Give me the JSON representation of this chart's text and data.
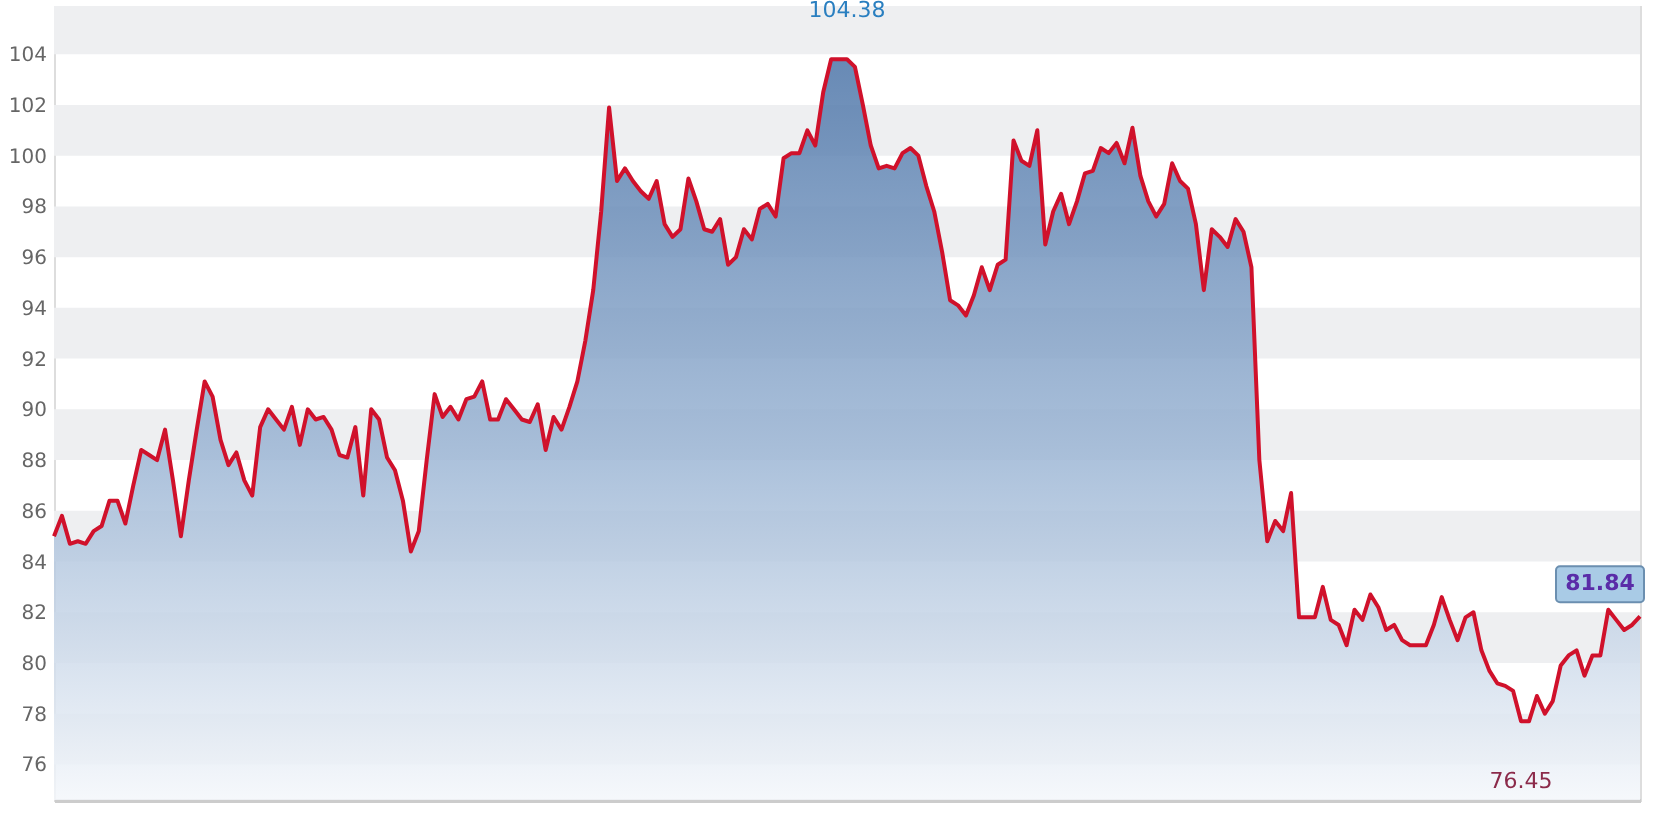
{
  "chart_data": {
    "type": "area",
    "categories": [
      null,
      null,
      null,
      null,
      null,
      null,
      null,
      null,
      null,
      null,
      null,
      null,
      null,
      null,
      null,
      null,
      null,
      null,
      null,
      null,
      null,
      null,
      null,
      null,
      null,
      null,
      null,
      null,
      null,
      null,
      null,
      null,
      null,
      null,
      null,
      null,
      null,
      null,
      null,
      null,
      null,
      null,
      null,
      null,
      null,
      null,
      null,
      null,
      null,
      null,
      null,
      null,
      null,
      null,
      null,
      null,
      null,
      null,
      null,
      null,
      null,
      null,
      null,
      null,
      null,
      null,
      null,
      null,
      null,
      null,
      null,
      null,
      null,
      null,
      null,
      null,
      null,
      null,
      null,
      null,
      null,
      null,
      null,
      null,
      null,
      null,
      null,
      null,
      null,
      null,
      null,
      null,
      null,
      null,
      null,
      null,
      null,
      null,
      null,
      null,
      null,
      null,
      null,
      null,
      null,
      null,
      null,
      null,
      null,
      null,
      null,
      null,
      null,
      null,
      null,
      null,
      null,
      null,
      null,
      null,
      null,
      null,
      null,
      null,
      null,
      null,
      null,
      null,
      null,
      null,
      null,
      null,
      null,
      null,
      null,
      null,
      null,
      null,
      null,
      null,
      null,
      null,
      null,
      null,
      null,
      null,
      null,
      null,
      null,
      null,
      null,
      null,
      null,
      null,
      null,
      null,
      null,
      null,
      null,
      null,
      null,
      null,
      null,
      null,
      null,
      null,
      null,
      null,
      null,
      null,
      null,
      null,
      null,
      null,
      null,
      null,
      null,
      null,
      null,
      null,
      null,
      null,
      null,
      null,
      null,
      null,
      null,
      null,
      null,
      null,
      null,
      null,
      null,
      null,
      null,
      null,
      null,
      null,
      null,
      null,
      null
    ],
    "series": [
      {
        "color": "#d0112b",
        "values": [
          85.0,
          85.8,
          84.7,
          84.8,
          84.7,
          85.2,
          85.4,
          86.4,
          86.4,
          85.5,
          87.0,
          88.4,
          88.2,
          88.0,
          89.2,
          87.2,
          85.0,
          87.2,
          89.2,
          91.1,
          90.5,
          88.8,
          87.8,
          88.3,
          87.2,
          86.6,
          89.3,
          90.0,
          89.6,
          89.2,
          90.1,
          88.6,
          90.0,
          89.6,
          89.7,
          89.2,
          88.2,
          88.1,
          89.3,
          86.6,
          90.0,
          89.6,
          88.1,
          87.6,
          86.4,
          84.4,
          85.2,
          88.0,
          90.6,
          89.7,
          90.1,
          89.6,
          90.4,
          90.5,
          91.1,
          89.6,
          89.6,
          90.4,
          90.0,
          89.6,
          89.5,
          90.2,
          88.4,
          89.7,
          89.2,
          90.1,
          91.1,
          92.7,
          94.7,
          97.8,
          101.9,
          99.0,
          99.5,
          99.0,
          98.6,
          98.3,
          99.0,
          97.3,
          96.8,
          97.1,
          99.1,
          98.2,
          97.1,
          97.0,
          97.5,
          95.7,
          96.0,
          97.1,
          96.7,
          97.9,
          98.1,
          97.6,
          99.9,
          100.1,
          100.1,
          101.0,
          100.4,
          102.5,
          103.8,
          103.8,
          103.8,
          103.5,
          102.0,
          100.4,
          99.5,
          99.6,
          99.5,
          100.1,
          100.3,
          100.0,
          98.8,
          97.8,
          96.2,
          94.3,
          94.1,
          93.7,
          94.5,
          95.6,
          94.7,
          95.7,
          95.9,
          100.6,
          99.8,
          99.6,
          101.0,
          96.5,
          97.8,
          98.5,
          97.3,
          98.2,
          99.3,
          99.4,
          100.3,
          100.1,
          100.5,
          99.7,
          101.1,
          99.2,
          98.2,
          97.6,
          98.1,
          99.7,
          99.0,
          98.7,
          97.3,
          94.7,
          97.1,
          96.8,
          96.4,
          97.5,
          97.0,
          95.6,
          88.0,
          84.8,
          85.6,
          85.2,
          86.7,
          81.8,
          81.8,
          81.8,
          83.0,
          81.7,
          81.5,
          80.7,
          82.1,
          81.7,
          82.7,
          82.2,
          81.3,
          81.5,
          80.9,
          80.7,
          80.7,
          80.7,
          81.5,
          82.6,
          81.7,
          80.9,
          81.8,
          82.0,
          80.5,
          79.7,
          79.2,
          79.1,
          78.9,
          77.7,
          77.7,
          78.7,
          78.0,
          78.5,
          79.9,
          80.3,
          80.5,
          79.5,
          80.3,
          80.3,
          82.1,
          81.7,
          81.3,
          81.5,
          81.84
        ]
      }
    ],
    "annotations": [
      "104.38",
      "76.45",
      {
        "text": "81.84",
        "y": 81.84
      }
    ],
    "ylim": [
      74.6,
      105.9
    ],
    "yticks": [
      76,
      78,
      80,
      82,
      84,
      86,
      88,
      90,
      92,
      94,
      96,
      98,
      100,
      102,
      104
    ],
    "bands": [
      {
        "axis": "y",
        "from": 104,
        "to": 105.9,
        "color": "#eeeff1"
      },
      {
        "axis": "y",
        "from": 100,
        "to": 102,
        "color": "#eeeff1"
      },
      {
        "axis": "y",
        "from": 96,
        "to": 98,
        "color": "#eeeff1"
      },
      {
        "axis": "y",
        "from": 92,
        "to": 94,
        "color": "#eeeff1"
      },
      {
        "axis": "y",
        "from": 88,
        "to": 90,
        "color": "#eeeff1"
      },
      {
        "axis": "y",
        "from": 84,
        "to": 86,
        "color": "#eeeff1"
      },
      {
        "axis": "y",
        "from": 80,
        "to": 82,
        "color": "#eeeff1"
      },
      {
        "axis": "y",
        "from": 76,
        "to": 78,
        "color": "#eeeff1"
      }
    ]
  }
}
